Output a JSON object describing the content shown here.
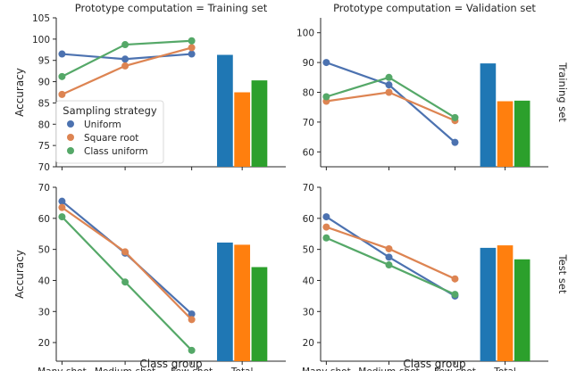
{
  "chart_data": {
    "type": "line",
    "categories": [
      "Many-shot",
      "Medium-shot",
      "Few-shot"
    ],
    "total_label": "Total",
    "xlabel": "Class group",
    "ylabel": "Accuracy",
    "legend": {
      "title": "Sampling strategy",
      "placement": "bottom-left of top-left panel",
      "entries": [
        {
          "name": "Uniform",
          "color": "#4c72b0"
        },
        {
          "name": "Square root",
          "color": "#dd8452"
        },
        {
          "name": "Class uniform",
          "color": "#55a868"
        }
      ]
    },
    "bar_colors": [
      "#1f77b4",
      "#ff7f0e",
      "#2ca02c"
    ],
    "panels": [
      {
        "title": "Prototype computation = Training set",
        "row_label": "",
        "ylim": [
          70,
          105
        ],
        "yticks": [
          70,
          75,
          80,
          85,
          90,
          95,
          100,
          105
        ],
        "series": [
          {
            "name": "Uniform",
            "values": [
              96.5,
              95.3,
              96.5
            ],
            "total": 96.3
          },
          {
            "name": "Square root",
            "values": [
              87.0,
              93.7,
              98.0
            ],
            "total": 87.5
          },
          {
            "name": "Class uniform",
            "values": [
              91.2,
              98.7,
              99.6
            ],
            "total": 90.3
          }
        ]
      },
      {
        "title": "Prototype computation = Validation set",
        "row_label": "Training set",
        "ylim": [
          55,
          105
        ],
        "yticks": [
          60,
          70,
          80,
          90,
          100
        ],
        "series": [
          {
            "name": "Uniform",
            "values": [
              90.0,
              82.5,
              63.2
            ],
            "total": 89.7
          },
          {
            "name": "Square root",
            "values": [
              77.0,
              80.0,
              70.5
            ],
            "total": 77.0
          },
          {
            "name": "Class uniform",
            "values": [
              78.5,
              85.0,
              71.5
            ],
            "total": 77.2
          }
        ]
      },
      {
        "title": "",
        "row_label": "",
        "ylim": [
          14,
          70
        ],
        "yticks": [
          20,
          30,
          40,
          50,
          60,
          70
        ],
        "series": [
          {
            "name": "Uniform",
            "values": [
              65.5,
              48.8,
              29.2
            ],
            "total": 52.2
          },
          {
            "name": "Square root",
            "values": [
              63.5,
              49.2,
              27.4
            ],
            "total": 51.5
          },
          {
            "name": "Class uniform",
            "values": [
              60.5,
              39.5,
              17.5
            ],
            "total": 44.3
          }
        ]
      },
      {
        "title": "",
        "row_label": "Test set",
        "ylim": [
          14,
          70
        ],
        "yticks": [
          20,
          30,
          40,
          50,
          60,
          70
        ],
        "series": [
          {
            "name": "Uniform",
            "values": [
              60.5,
              47.5,
              35.0
            ],
            "total": 50.5
          },
          {
            "name": "Square root",
            "values": [
              57.2,
              50.2,
              40.5
            ],
            "total": 51.3
          },
          {
            "name": "Class uniform",
            "values": [
              53.7,
              45.0,
              35.5
            ],
            "total": 46.8
          }
        ]
      }
    ]
  }
}
